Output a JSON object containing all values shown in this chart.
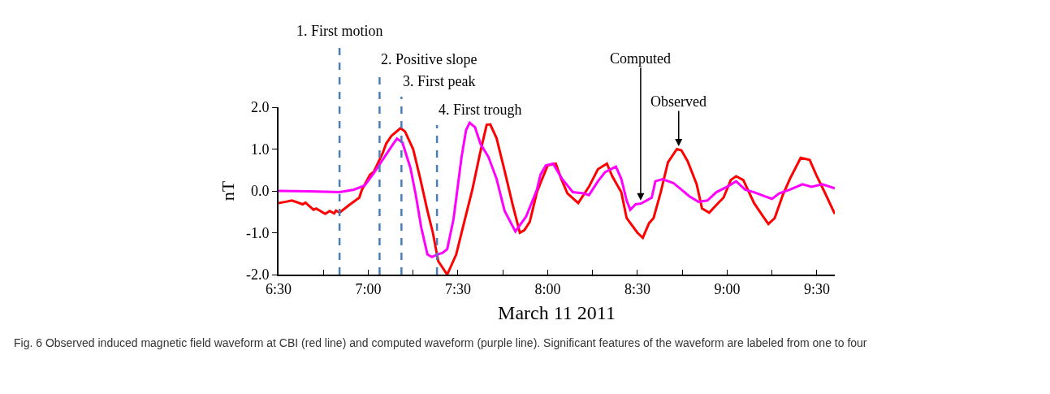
{
  "chart_data": {
    "type": "line",
    "xlabel": "March 11 2011",
    "ylabel": "nT",
    "xlim": [
      6.5,
      9.6
    ],
    "xticks": [
      {
        "value": 6.5,
        "label": "6:30"
      },
      {
        "value": 6.75,
        "label": null
      },
      {
        "value": 7.0,
        "label": "7:00"
      },
      {
        "value": 7.25,
        "label": null
      },
      {
        "value": 7.5,
        "label": "7:30"
      },
      {
        "value": 7.75,
        "label": null
      },
      {
        "value": 8.0,
        "label": "8:00"
      },
      {
        "value": 8.25,
        "label": null
      },
      {
        "value": 8.5,
        "label": "8:30"
      },
      {
        "value": 8.75,
        "label": null
      },
      {
        "value": 9.0,
        "label": "9:00"
      },
      {
        "value": 9.25,
        "label": null
      },
      {
        "value": 9.5,
        "label": "9:30"
      }
    ],
    "ylim": [
      -2,
      2
    ],
    "yticks": [
      {
        "value": -2,
        "label": "-2.0"
      },
      {
        "value": -1,
        "label": "-1.0"
      },
      {
        "value": 0,
        "label": "0.0"
      },
      {
        "value": 1,
        "label": "1.0"
      },
      {
        "value": 2,
        "label": "2.0"
      }
    ],
    "line_style": "solid",
    "marker": "none",
    "series": [
      {
        "color": "#ff0000",
        "x": [
          6.5,
          6.54,
          6.575,
          6.635,
          6.65,
          6.695,
          6.71,
          6.76,
          6.785,
          6.81,
          6.82,
          6.84,
          6.89,
          6.95,
          6.965,
          7.01,
          7.03,
          7.08,
          7.1,
          7.13,
          7.18,
          7.205,
          7.25,
          7.29,
          7.33,
          7.36,
          7.39,
          7.44,
          7.49,
          7.535,
          7.58,
          7.625,
          7.66,
          7.68,
          7.715,
          7.76,
          7.806,
          7.845,
          7.87,
          7.9,
          7.94,
          7.96,
          8.0,
          8.045,
          8.075,
          8.11,
          8.17,
          8.23,
          8.28,
          8.33,
          8.36,
          8.41,
          8.44,
          8.5,
          8.53,
          8.565,
          8.59,
          8.63,
          8.67,
          8.72,
          8.745,
          8.78,
          8.83,
          8.86,
          8.9,
          8.95,
          8.98,
          9.02,
          9.05,
          9.09,
          9.15,
          9.2,
          9.23,
          9.265,
          9.31,
          9.35,
          9.41,
          9.46,
          9.5,
          9.54,
          9.6
        ],
        "values": [
          -0.29,
          -0.26,
          -0.23,
          -0.32,
          -0.28,
          -0.45,
          -0.42,
          -0.55,
          -0.48,
          -0.54,
          -0.47,
          -0.52,
          -0.35,
          -0.16,
          0.03,
          0.39,
          0.45,
          0.9,
          1.13,
          1.32,
          1.5,
          1.42,
          1.0,
          0.29,
          -0.48,
          -1.0,
          -1.68,
          -2.0,
          -1.52,
          -0.74,
          0.03,
          0.94,
          1.58,
          1.59,
          1.26,
          0.48,
          -0.35,
          -1.0,
          -0.94,
          -0.74,
          -0.03,
          0.19,
          0.61,
          0.65,
          0.29,
          -0.06,
          -0.29,
          0.1,
          0.52,
          0.65,
          0.35,
          -0.03,
          -0.65,
          -1.0,
          -1.12,
          -0.77,
          -0.65,
          -0.03,
          0.68,
          1.0,
          0.97,
          0.71,
          0.16,
          -0.42,
          -0.52,
          -0.29,
          -0.16,
          0.26,
          0.35,
          0.26,
          -0.29,
          -0.61,
          -0.79,
          -0.65,
          -0.1,
          0.29,
          0.79,
          0.74,
          0.35,
          0.0,
          -0.55
        ]
      },
      {
        "color": "#ff00ff",
        "x": [
          6.5,
          6.665,
          6.84,
          6.92,
          6.98,
          7.03,
          7.1,
          7.14,
          7.16,
          7.19,
          7.235,
          7.265,
          7.295,
          7.33,
          7.355,
          7.385,
          7.415,
          7.44,
          7.475,
          7.52,
          7.545,
          7.565,
          7.595,
          7.625,
          7.67,
          7.715,
          7.76,
          7.82,
          7.88,
          7.94,
          7.96,
          7.99,
          8.03,
          8.08,
          8.14,
          8.2,
          8.23,
          8.28,
          8.32,
          8.38,
          8.41,
          8.44,
          8.46,
          8.49,
          8.52,
          8.58,
          8.6,
          8.64,
          8.7,
          8.745,
          8.79,
          8.84,
          8.89,
          8.94,
          9.0,
          9.05,
          9.1,
          9.15,
          9.21,
          9.25,
          9.29,
          9.35,
          9.42,
          9.47,
          9.53,
          9.6
        ],
        "values": [
          0,
          -0.01,
          -0.03,
          0.03,
          0.13,
          0.42,
          0.87,
          1.13,
          1.25,
          1.16,
          0.55,
          -0.1,
          -0.87,
          -1.52,
          -1.58,
          -1.52,
          -1.48,
          -1.39,
          -0.68,
          0.81,
          1.45,
          1.63,
          1.52,
          1.13,
          0.81,
          0.29,
          -0.48,
          -0.97,
          -0.61,
          0.03,
          0.39,
          0.61,
          0.65,
          0.29,
          -0.03,
          -0.06,
          -0.1,
          0.23,
          0.45,
          0.58,
          0.29,
          -0.23,
          -0.45,
          -0.32,
          -0.3,
          -0.16,
          0.23,
          0.28,
          0.19,
          0.03,
          -0.13,
          -0.26,
          -0.23,
          -0.03,
          0.1,
          0.23,
          0.03,
          -0.03,
          -0.13,
          -0.19,
          -0.06,
          0.03,
          0.16,
          0.1,
          0.16,
          0.06
        ]
      }
    ],
    "ref_lines": [
      {
        "axis": "x",
        "value": 6.84,
        "label": "1. First motion",
        "color": "#4a7ebb",
        "line_style": "dashed"
      },
      {
        "axis": "x",
        "value": 7.063,
        "label": "2. Positive slope",
        "color": "#4a7ebb",
        "line_style": "dashed"
      },
      {
        "axis": "x",
        "value": 7.185,
        "label": "3. First peak",
        "color": "#4a7ebb",
        "line_style": "dashed"
      },
      {
        "axis": "x",
        "value": 7.383,
        "label": "4. First trough",
        "color": "#4a7ebb",
        "line_style": "dashed"
      }
    ],
    "annotations": [
      {
        "text": "Computed",
        "x": 8.518,
        "y": -0.23
      },
      {
        "text": "Observed",
        "x": 8.73,
        "y": 1.07
      },
      "Fig. 6 Observed induced magnetic field waveform at CBI (red line) and computed waveform (purple line). Significant features of the waveform are labeled from one to four"
    ]
  }
}
